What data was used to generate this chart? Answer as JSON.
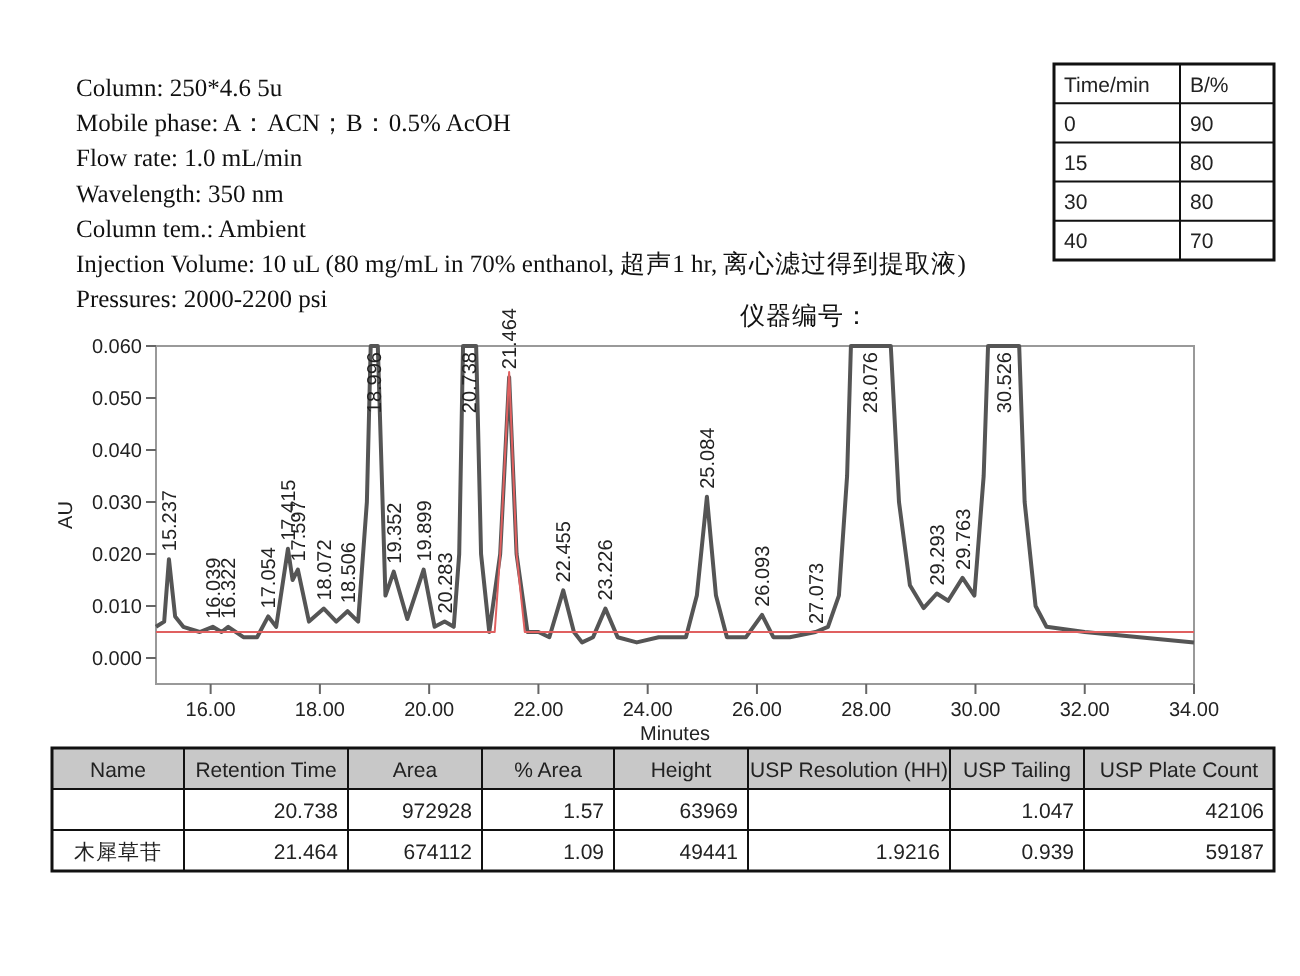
{
  "chart_data": [
    {
      "type": "other",
      "annotations": [
        "Column: 250*4.6 5u",
        "Mobile phase: A：ACN；B：0.5% AcOH",
        "Flow rate: 1.0 mL/min",
        "Wavelength:  350 nm",
        "Column tem.: Ambient",
        "Injection Volume: 10 uL (80 mg/mL in 70% enthanol, 超声1 hr, 离心滤过得到提取液)",
        "Pressures: 2000-2200 psi"
      ]
    },
    {
      "type": "other",
      "categories": [
        "Time/min",
        "B/%"
      ],
      "cell_labels": [
        [
          "0",
          "90"
        ],
        [
          "15",
          "80"
        ],
        [
          "30",
          "80"
        ],
        [
          "40",
          "70"
        ]
      ]
    },
    {
      "type": "line",
      "subtitle": "仪器编号：",
      "xlabel": "Minutes",
      "ylabel": "AU",
      "xlim": [
        15,
        34
      ],
      "ylim": [
        -0.005,
        0.06
      ],
      "xticks": [
        {
          "value": 16,
          "label": "16.00"
        },
        {
          "value": 18,
          "label": "18.00"
        },
        {
          "value": 20,
          "label": "20.00"
        },
        {
          "value": 22,
          "label": "22.00"
        },
        {
          "value": 24,
          "label": "24.00"
        },
        {
          "value": 26,
          "label": "26.00"
        },
        {
          "value": 28,
          "label": "28.00"
        },
        {
          "value": 30,
          "label": "30.00"
        },
        {
          "value": 32,
          "label": "32.00"
        },
        {
          "value": 34,
          "label": "34.00"
        }
      ],
      "yticks": [
        {
          "value": 0,
          "label": "0.000"
        },
        {
          "value": 0.01,
          "label": "0.010"
        },
        {
          "value": 0.02,
          "label": "0.020"
        },
        {
          "value": 0.03,
          "label": "0.030"
        },
        {
          "value": 0.04,
          "label": "0.040"
        },
        {
          "value": 0.05,
          "label": "0.050"
        },
        {
          "value": 0.06,
          "label": "0.060"
        }
      ],
      "grid": false,
      "line_style": "solid",
      "series": [
        {
          "color": "#555555",
          "x": [
            15,
            15.15,
            15.237,
            15.35,
            15.5,
            15.8,
            16.039,
            16.2,
            16.322,
            16.6,
            16.85,
            17.054,
            17.2,
            17.415,
            17.5,
            17.597,
            17.8,
            18.072,
            18.3,
            18.506,
            18.7,
            18.86,
            18.93,
            18.996,
            19.06,
            19.2,
            19.352,
            19.6,
            19.899,
            20.1,
            20.283,
            20.45,
            20.55,
            20.62,
            20.738,
            20.86,
            20.95,
            21.1,
            21.3,
            21.464,
            21.6,
            21.8,
            22,
            22.2,
            22.455,
            22.65,
            22.8,
            23,
            23.226,
            23.45,
            23.8,
            24.2,
            24.7,
            24.9,
            25.084,
            25.25,
            25.45,
            25.8,
            26.093,
            26.3,
            26.6,
            27.073,
            27.3,
            27.5,
            27.65,
            27.72,
            28.076,
            28.45,
            28.6,
            28.8,
            29.05,
            29.293,
            29.5,
            29.763,
            29.98,
            30.15,
            30.23,
            30.526,
            30.8,
            30.9,
            31.1,
            31.3,
            32,
            33,
            34
          ],
          "values": [
            0.006,
            0.007,
            0.019,
            0.008,
            0.006,
            0.005,
            0.006,
            0.005,
            0.006,
            0.004,
            0.004,
            0.008,
            0.006,
            0.021,
            0.015,
            0.017,
            0.007,
            0.0095,
            0.007,
            0.009,
            0.007,
            0.03,
            0.06,
            0.06,
            0.06,
            0.012,
            0.0166,
            0.0075,
            0.017,
            0.006,
            0.007,
            0.006,
            0.02,
            0.06,
            0.06,
            0.06,
            0.02,
            0.005,
            0.02,
            0.054,
            0.02,
            0.005,
            0.005,
            0.004,
            0.013,
            0.005,
            0.003,
            0.004,
            0.0095,
            0.004,
            0.003,
            0.004,
            0.004,
            0.012,
            0.031,
            0.012,
            0.004,
            0.004,
            0.0083,
            0.004,
            0.004,
            0.005,
            0.006,
            0.012,
            0.035,
            0.06,
            0.06,
            0.06,
            0.03,
            0.014,
            0.0096,
            0.0124,
            0.011,
            0.0154,
            0.012,
            0.035,
            0.06,
            0.06,
            0.06,
            0.03,
            0.01,
            0.006,
            0.005,
            0.004,
            0.003
          ]
        },
        {
          "color": "#e06060",
          "x": [
            15,
            21.2,
            21.3,
            21.464,
            21.6,
            21.75,
            34
          ],
          "values": [
            0.005,
            0.005,
            0.02,
            0.055,
            0.02,
            0.005,
            0.005
          ]
        }
      ],
      "annotations": [
        {
          "text": "15.237",
          "x": 15.237,
          "y": 0.019
        },
        {
          "text": "16.039",
          "x": 16.039,
          "y": 0.006
        },
        {
          "text": "16.322",
          "x": 16.322,
          "y": 0.006
        },
        {
          "text": "17.054",
          "x": 17.054,
          "y": 0.008
        },
        {
          "text": "17.415",
          "x": 17.415,
          "y": 0.021
        },
        {
          "text": "17.597",
          "x": 17.597,
          "y": 0.017
        },
        {
          "text": "18.072",
          "x": 18.072,
          "y": 0.0095
        },
        {
          "text": "18.506",
          "x": 18.506,
          "y": 0.009
        },
        {
          "text": "18.996",
          "x": 18.996,
          "y": 0.06
        },
        {
          "text": "19.352",
          "x": 19.352,
          "y": 0.0166
        },
        {
          "text": "19.899",
          "x": 19.899,
          "y": 0.017
        },
        {
          "text": "20.283",
          "x": 20.283,
          "y": 0.007
        },
        {
          "text": "20.738",
          "x": 20.738,
          "y": 0.06
        },
        {
          "text": "21.464",
          "x": 21.464,
          "y": 0.054
        },
        {
          "text": "22.455",
          "x": 22.455,
          "y": 0.013
        },
        {
          "text": "23.226",
          "x": 23.226,
          "y": 0.0095
        },
        {
          "text": "25.084",
          "x": 25.084,
          "y": 0.031
        },
        {
          "text": "26.093",
          "x": 26.093,
          "y": 0.0083
        },
        {
          "text": "27.073",
          "x": 27.073,
          "y": 0.005
        },
        {
          "text": "28.076",
          "x": 28.076,
          "y": 0.06
        },
        {
          "text": "29.293",
          "x": 29.293,
          "y": 0.0124
        },
        {
          "text": "29.763",
          "x": 29.763,
          "y": 0.0154
        },
        {
          "text": "30.526",
          "x": 30.526,
          "y": 0.06
        }
      ]
    },
    {
      "type": "other",
      "categories": [
        "Name",
        "Retention Time",
        "Area",
        "% Area",
        "Height",
        "USP Resolution (HH)",
        "USP Tailing",
        "USP Plate Count"
      ],
      "cell_labels": [
        [
          null,
          "20.738",
          "972928",
          "1.57",
          "63969",
          null,
          "1.047",
          "42106"
        ],
        [
          "木犀草苷",
          "21.464",
          "674112",
          "1.09",
          "49441",
          "1.9216",
          "0.939",
          "59187"
        ]
      ]
    }
  ]
}
